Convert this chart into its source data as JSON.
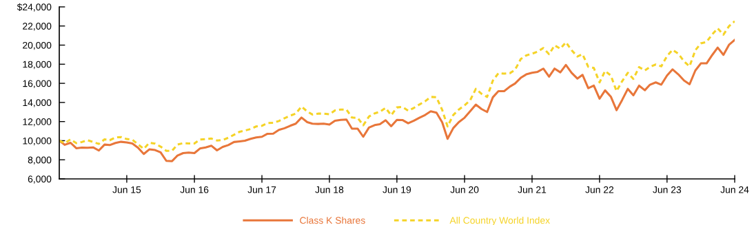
{
  "chart_data": {
    "type": "line",
    "x": [
      "2014-06",
      "2014-07",
      "2014-08",
      "2014-09",
      "2014-10",
      "2014-11",
      "2014-12",
      "2015-01",
      "2015-02",
      "2015-03",
      "2015-04",
      "2015-05",
      "2015-06",
      "2015-07",
      "2015-08",
      "2015-09",
      "2015-10",
      "2015-11",
      "2015-12",
      "2016-01",
      "2016-02",
      "2016-03",
      "2016-04",
      "2016-05",
      "2016-06",
      "2016-07",
      "2016-08",
      "2016-09",
      "2016-10",
      "2016-11",
      "2016-12",
      "2017-01",
      "2017-02",
      "2017-03",
      "2017-04",
      "2017-05",
      "2017-06",
      "2017-07",
      "2017-08",
      "2017-09",
      "2017-10",
      "2017-11",
      "2017-12",
      "2018-01",
      "2018-02",
      "2018-03",
      "2018-04",
      "2018-05",
      "2018-06",
      "2018-07",
      "2018-08",
      "2018-09",
      "2018-10",
      "2018-11",
      "2018-12",
      "2019-01",
      "2019-02",
      "2019-03",
      "2019-04",
      "2019-05",
      "2019-06",
      "2019-07",
      "2019-08",
      "2019-09",
      "2019-10",
      "2019-11",
      "2019-12",
      "2020-01",
      "2020-02",
      "2020-03",
      "2020-04",
      "2020-05",
      "2020-06",
      "2020-07",
      "2020-08",
      "2020-09",
      "2020-10",
      "2020-11",
      "2020-12",
      "2021-01",
      "2021-02",
      "2021-03",
      "2021-04",
      "2021-05",
      "2021-06",
      "2021-07",
      "2021-08",
      "2021-09",
      "2021-10",
      "2021-11",
      "2021-12",
      "2022-01",
      "2022-02",
      "2022-03",
      "2022-04",
      "2022-05",
      "2022-06",
      "2022-07",
      "2022-08",
      "2022-09",
      "2022-10",
      "2022-11",
      "2022-12",
      "2023-01",
      "2023-02",
      "2023-03",
      "2023-04",
      "2023-05",
      "2023-06",
      "2023-07",
      "2023-08",
      "2023-09",
      "2023-10",
      "2023-11",
      "2023-12",
      "2024-01",
      "2024-02",
      "2024-03",
      "2024-04",
      "2024-05",
      "2024-06"
    ],
    "series": [
      {
        "name": "Class K Shares",
        "color": "#e8763a",
        "line_style": "solid",
        "values": [
          10000,
          9570,
          9780,
          9210,
          9280,
          9260,
          9300,
          8970,
          9590,
          9540,
          9760,
          9880,
          9810,
          9710,
          9260,
          8610,
          9090,
          9020,
          8780,
          7890,
          7860,
          8440,
          8700,
          8750,
          8700,
          9180,
          9300,
          9470,
          8990,
          9350,
          9540,
          9860,
          9930,
          10000,
          10190,
          10340,
          10410,
          10720,
          10740,
          11130,
          11300,
          11560,
          11780,
          12420,
          11940,
          11780,
          11750,
          11780,
          11680,
          12090,
          12180,
          12210,
          11250,
          11250,
          10410,
          11370,
          11630,
          11730,
          12140,
          11510,
          12180,
          12160,
          11820,
          12090,
          12400,
          12690,
          13070,
          12930,
          11920,
          10190,
          11320,
          11940,
          12400,
          13070,
          13770,
          13310,
          13000,
          14540,
          15180,
          15180,
          15660,
          15980,
          16580,
          16940,
          17100,
          17200,
          17540,
          16700,
          17540,
          17150,
          17920,
          17100,
          16500,
          16890,
          15500,
          15760,
          14390,
          15260,
          14610,
          13190,
          14250,
          15420,
          14750,
          15760,
          15280,
          15860,
          16100,
          15860,
          16820,
          17460,
          16940,
          16290,
          15900,
          17340,
          18090,
          18090,
          18980,
          19740,
          18980,
          20030,
          20540
        ]
      },
      {
        "name": "All Country World Index",
        "color": "#f5d327",
        "line_style": "dashed",
        "values": [
          10000,
          9740,
          10140,
          9740,
          9860,
          10050,
          9860,
          9660,
          10140,
          10050,
          10340,
          10380,
          10170,
          10100,
          9620,
          9140,
          9780,
          9690,
          9380,
          8940,
          8940,
          9590,
          9740,
          9710,
          9710,
          10120,
          10170,
          10220,
          10020,
          10070,
          10310,
          10620,
          10940,
          11060,
          11220,
          11490,
          11560,
          11850,
          11870,
          12060,
          12350,
          12620,
          12830,
          13580,
          13050,
          12740,
          12830,
          12830,
          12760,
          13170,
          13260,
          13260,
          12420,
          12380,
          11610,
          12520,
          12860,
          13020,
          13430,
          12660,
          13480,
          13530,
          13140,
          13430,
          13790,
          14130,
          14580,
          14540,
          13220,
          11490,
          12690,
          13260,
          13700,
          14220,
          15420,
          14900,
          14580,
          16290,
          17060,
          17010,
          17060,
          17420,
          18540,
          18930,
          19100,
          19320,
          19700,
          19050,
          19980,
          19620,
          20300,
          19460,
          18810,
          19050,
          17730,
          17610,
          16100,
          17300,
          16820,
          15180,
          16220,
          17100,
          16460,
          17700,
          17340,
          17730,
          17970,
          17780,
          18860,
          19510,
          19100,
          18300,
          17780,
          19460,
          20180,
          20340,
          21140,
          21760,
          21090,
          21980,
          22500
        ]
      }
    ],
    "xlim": [
      "2014-06",
      "2024-06"
    ],
    "xticks": [
      {
        "value": "2015-06",
        "label": "Jun 15"
      },
      {
        "value": "2016-06",
        "label": "Jun 16"
      },
      {
        "value": "2017-06",
        "label": "Jun 17"
      },
      {
        "value": "2018-06",
        "label": "Jun 18"
      },
      {
        "value": "2019-06",
        "label": "Jun 19"
      },
      {
        "value": "2020-06",
        "label": "Jun 20"
      },
      {
        "value": "2021-06",
        "label": "Jun 21"
      },
      {
        "value": "2022-06",
        "label": "Jun 22"
      },
      {
        "value": "2023-06",
        "label": "Jun 23"
      },
      {
        "value": "2024-06",
        "label": "Jun 24"
      }
    ],
    "ylim": [
      6000,
      24000
    ],
    "yticks": [
      {
        "value": 6000,
        "label": "6,000"
      },
      {
        "value": 8000,
        "label": "8,000"
      },
      {
        "value": 10000,
        "label": "10,000"
      },
      {
        "value": 12000,
        "label": "12,000"
      },
      {
        "value": 14000,
        "label": "14,000"
      },
      {
        "value": 16000,
        "label": "16,000"
      },
      {
        "value": 18000,
        "label": "18,000"
      },
      {
        "value": 20000,
        "label": "20,000"
      },
      {
        "value": 22000,
        "label": "22,000"
      },
      {
        "value": 24000,
        "label": "$24,000"
      }
    ],
    "grid": false,
    "legend": "bottom",
    "marker": "none"
  }
}
